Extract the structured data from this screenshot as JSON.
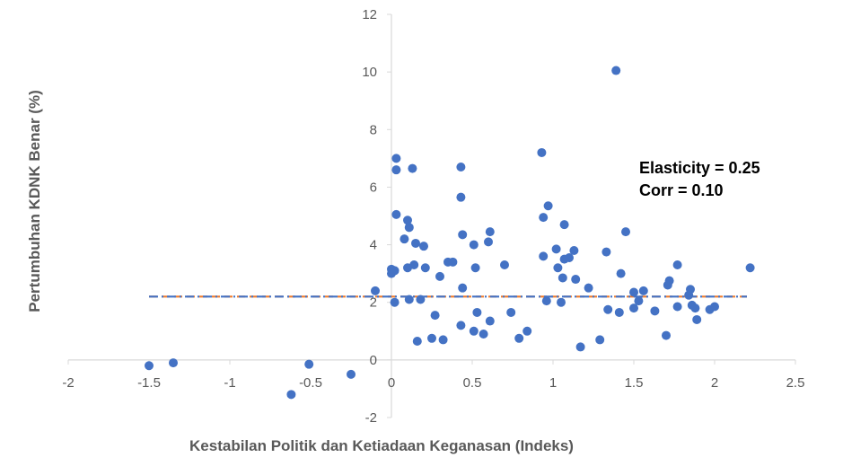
{
  "chart_data": {
    "type": "scatter",
    "title": "",
    "xlabel": "Kestabilan Politik dan Ketiadaan Keganasan (Indeks)",
    "ylabel": "Pertumbuhan KDNK Benar (%)",
    "xlim": [
      -2,
      2.5
    ],
    "ylim": [
      -2,
      12
    ],
    "x_ticks": [
      -2,
      -1.5,
      -1,
      -0.5,
      0,
      0.5,
      1,
      1.5,
      2,
      2.5
    ],
    "x_tick_labels": [
      "-2",
      "-1.5",
      "-1",
      "-0.5",
      "0",
      "0.5",
      "1",
      "1.5",
      "2",
      "2.5"
    ],
    "y_ticks": [
      -2,
      0,
      2,
      4,
      6,
      8,
      10,
      12
    ],
    "y_tick_labels": [
      "-2",
      "0",
      "2",
      "4",
      "6",
      "8",
      "10",
      "12"
    ],
    "grid": false,
    "legend": "none",
    "point_color": "#4472C4",
    "annotations": [
      "Elasticity = 0.25",
      "Corr = 0.10"
    ],
    "trend_lines": [
      {
        "style": "dashed",
        "color": "#ED7D31",
        "x": [
          -1.5,
          2.2
        ],
        "y": [
          2.2,
          2.2
        ]
      },
      {
        "style": "dash-dot",
        "color": "#4472C4",
        "x": [
          -1.5,
          2.2
        ],
        "y": [
          2.2,
          2.2
        ]
      }
    ],
    "series": [
      {
        "points": [
          [
            -1.5,
            -0.2
          ],
          [
            -1.35,
            -0.1
          ],
          [
            -0.62,
            -1.2
          ],
          [
            -0.51,
            -0.15
          ],
          [
            -0.25,
            -0.5
          ],
          [
            -0.1,
            2.4
          ],
          [
            0.0,
            3.0
          ],
          [
            0.0,
            3.15
          ],
          [
            0.02,
            3.1
          ],
          [
            0.02,
            2.0
          ],
          [
            0.03,
            7.0
          ],
          [
            0.03,
            6.6
          ],
          [
            0.03,
            5.05
          ],
          [
            0.08,
            4.2
          ],
          [
            0.1,
            4.85
          ],
          [
            0.1,
            3.2
          ],
          [
            0.11,
            2.1
          ],
          [
            0.11,
            4.6
          ],
          [
            0.13,
            6.65
          ],
          [
            0.14,
            3.3
          ],
          [
            0.15,
            4.05
          ],
          [
            0.16,
            0.65
          ],
          [
            0.18,
            2.1
          ],
          [
            0.2,
            3.95
          ],
          [
            0.21,
            3.2
          ],
          [
            0.25,
            0.75
          ],
          [
            0.27,
            1.55
          ],
          [
            0.3,
            2.9
          ],
          [
            0.32,
            0.7
          ],
          [
            0.35,
            3.4
          ],
          [
            0.38,
            3.4
          ],
          [
            0.43,
            6.7
          ],
          [
            0.43,
            5.65
          ],
          [
            0.44,
            4.35
          ],
          [
            0.44,
            2.5
          ],
          [
            0.43,
            1.2
          ],
          [
            0.51,
            1.0
          ],
          [
            0.51,
            4.0
          ],
          [
            0.52,
            3.2
          ],
          [
            0.53,
            1.65
          ],
          [
            0.57,
            0.9
          ],
          [
            0.6,
            4.1
          ],
          [
            0.61,
            4.45
          ],
          [
            0.61,
            1.35
          ],
          [
            0.7,
            3.3
          ],
          [
            0.74,
            1.65
          ],
          [
            0.79,
            0.75
          ],
          [
            0.84,
            1.0
          ],
          [
            0.93,
            7.2
          ],
          [
            0.94,
            4.95
          ],
          [
            0.94,
            3.6
          ],
          [
            0.96,
            2.05
          ],
          [
            0.97,
            5.35
          ],
          [
            1.02,
            3.85
          ],
          [
            1.03,
            3.2
          ],
          [
            1.05,
            2.0
          ],
          [
            1.06,
            2.85
          ],
          [
            1.07,
            4.7
          ],
          [
            1.07,
            3.5
          ],
          [
            1.1,
            3.55
          ],
          [
            1.13,
            3.8
          ],
          [
            1.14,
            2.8
          ],
          [
            1.17,
            0.45
          ],
          [
            1.22,
            2.5
          ],
          [
            1.29,
            0.7
          ],
          [
            1.33,
            3.75
          ],
          [
            1.34,
            1.75
          ],
          [
            1.39,
            10.05
          ],
          [
            1.41,
            1.65
          ],
          [
            1.42,
            3.0
          ],
          [
            1.45,
            4.45
          ],
          [
            1.5,
            1.8
          ],
          [
            1.5,
            2.35
          ],
          [
            1.53,
            2.05
          ],
          [
            1.56,
            2.4
          ],
          [
            1.63,
            1.7
          ],
          [
            1.7,
            0.85
          ],
          [
            1.71,
            2.6
          ],
          [
            1.72,
            2.75
          ],
          [
            1.77,
            3.3
          ],
          [
            1.77,
            1.85
          ],
          [
            1.84,
            2.25
          ],
          [
            1.85,
            2.45
          ],
          [
            1.86,
            1.9
          ],
          [
            1.88,
            1.8
          ],
          [
            1.89,
            1.4
          ],
          [
            1.97,
            1.75
          ],
          [
            2.0,
            1.85
          ],
          [
            2.22,
            3.2
          ]
        ]
      }
    ]
  }
}
